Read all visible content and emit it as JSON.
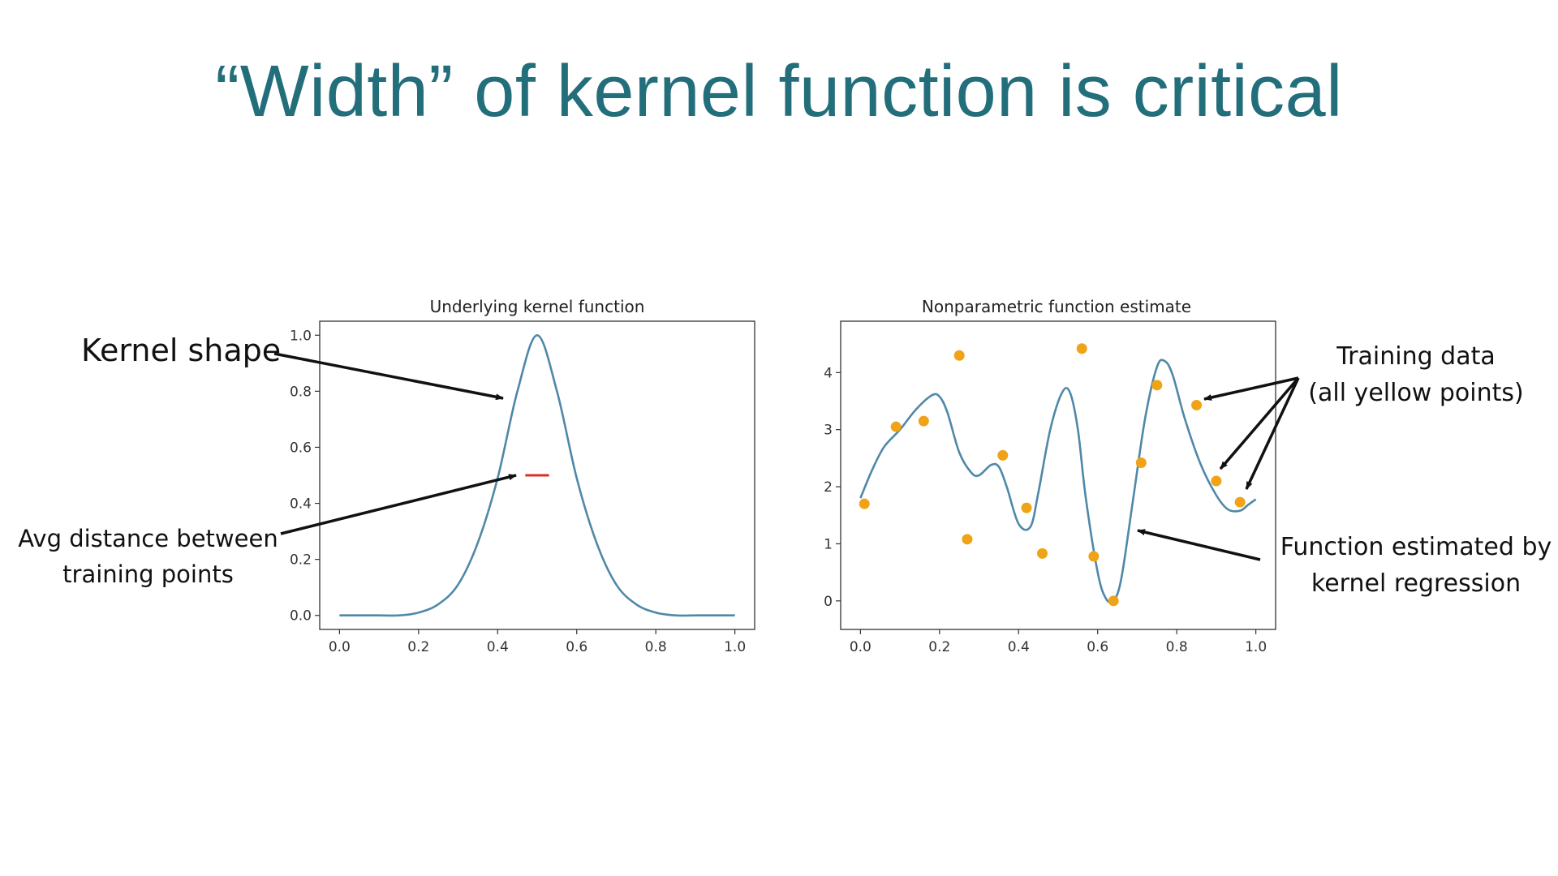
{
  "slide": {
    "title": "“Width” of kernel function is critical"
  },
  "annotations": {
    "kernel_shape": "Kernel shape",
    "avg_distance": [
      "Avg distance between",
      "training points"
    ],
    "training_data": [
      "Training data",
      "(all yellow points)"
    ],
    "function_estimated": [
      "Function estimated by",
      "kernel regression"
    ]
  },
  "colors": {
    "title": "#236e7b",
    "curve": "#4f88a8",
    "points": "#f0a316",
    "width_marker": "#d9302a",
    "arrow": "#111111"
  },
  "chart_data": [
    {
      "type": "line",
      "title": "Underlying kernel function",
      "xlabel": "",
      "ylabel": "",
      "xlim": [
        -0.05,
        1.05
      ],
      "ylim": [
        -0.05,
        1.05
      ],
      "xticks": [
        0.0,
        0.2,
        0.4,
        0.6,
        0.8,
        1.0
      ],
      "xtick_labels": [
        "0.0",
        "0.2",
        "0.4",
        "0.6",
        "0.8",
        "1.0"
      ],
      "yticks": [
        0.0,
        0.2,
        0.4,
        0.6,
        0.8,
        1.0
      ],
      "ytick_labels": [
        "0.0",
        "0.2",
        "0.4",
        "0.6",
        "0.8",
        "1.0"
      ],
      "grid": false,
      "series": [
        {
          "x": [
            0.0,
            0.05,
            0.1,
            0.15,
            0.2,
            0.25,
            0.3,
            0.35,
            0.4,
            0.45,
            0.5,
            0.55,
            0.6,
            0.65,
            0.7,
            0.75,
            0.8,
            0.85,
            0.9,
            0.95,
            1.0
          ],
          "values": [
            0.0,
            0.0,
            0.0,
            0.0,
            0.01,
            0.04,
            0.11,
            0.26,
            0.49,
            0.8,
            1.0,
            0.8,
            0.49,
            0.26,
            0.11,
            0.04,
            0.01,
            0.0,
            0.0,
            0.0,
            0.0
          ]
        }
      ],
      "width_marker": {
        "x": [
          0.47,
          0.53
        ],
        "y": 0.5
      }
    },
    {
      "type": "line",
      "title": "Nonparametric function estimate",
      "xlabel": "",
      "ylabel": "",
      "xlim": [
        -0.05,
        1.05
      ],
      "ylim": [
        -0.5,
        4.9
      ],
      "xticks": [
        0.0,
        0.2,
        0.4,
        0.6,
        0.8,
        1.0
      ],
      "xtick_labels": [
        "0.0",
        "0.2",
        "0.4",
        "0.6",
        "0.8",
        "1.0"
      ],
      "yticks": [
        0,
        1,
        2,
        3,
        4
      ],
      "ytick_labels": [
        "0",
        "1",
        "2",
        "3",
        "4"
      ],
      "grid": false,
      "series": [
        {
          "x": [
            0.0,
            0.03,
            0.06,
            0.1,
            0.14,
            0.18,
            0.2,
            0.22,
            0.25,
            0.28,
            0.3,
            0.33,
            0.35,
            0.37,
            0.4,
            0.43,
            0.45,
            0.48,
            0.51,
            0.53,
            0.55,
            0.57,
            0.6,
            0.62,
            0.64,
            0.66,
            0.69,
            0.72,
            0.75,
            0.77,
            0.79,
            0.82,
            0.86,
            0.9,
            0.93,
            0.96,
            0.98,
            1.0
          ],
          "values": [
            1.8,
            2.3,
            2.7,
            3.0,
            3.35,
            3.6,
            3.58,
            3.3,
            2.6,
            2.25,
            2.2,
            2.38,
            2.35,
            2.0,
            1.35,
            1.3,
            1.9,
            3.0,
            3.65,
            3.65,
            3.0,
            1.8,
            0.5,
            0.05,
            0.0,
            0.4,
            1.8,
            3.2,
            4.1,
            4.2,
            3.95,
            3.2,
            2.4,
            1.85,
            1.6,
            1.58,
            1.68,
            1.78
          ]
        },
        {
          "type": "scatter",
          "x": [
            0.01,
            0.09,
            0.16,
            0.25,
            0.27,
            0.36,
            0.42,
            0.46,
            0.56,
            0.59,
            0.64,
            0.71,
            0.75,
            0.85,
            0.9,
            0.96
          ],
          "values": [
            1.7,
            3.05,
            3.15,
            4.3,
            1.08,
            2.55,
            1.63,
            0.83,
            4.42,
            0.78,
            0.0,
            2.42,
            3.78,
            3.43,
            2.1,
            1.73
          ]
        }
      ]
    }
  ]
}
